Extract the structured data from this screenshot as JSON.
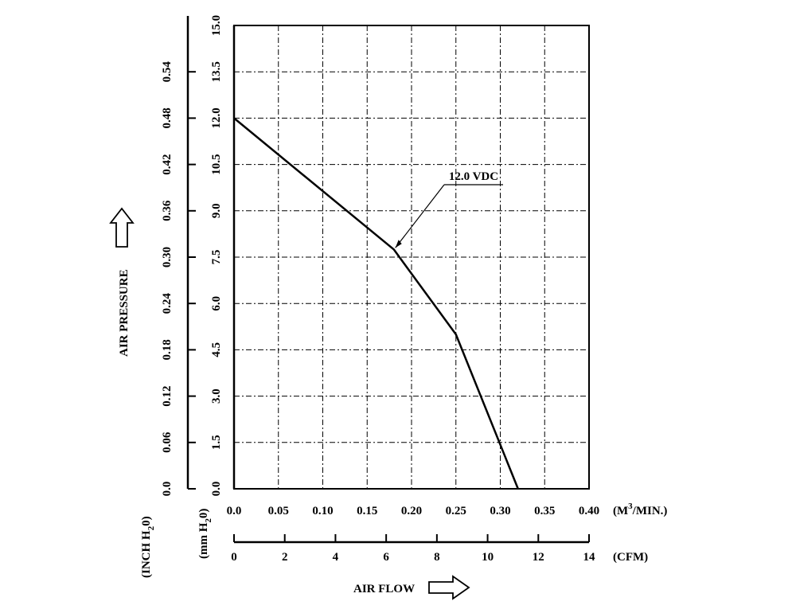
{
  "chart_data": {
    "type": "line",
    "x_unit_label": "(M",
    "x_unit_sup": "3",
    "x_unit_tail": "/MIN.)",
    "cfm_unit_label": "(CFM)",
    "y_mm_label": "(mm H",
    "y_mm_sub": "2",
    "y_mm_tail": "0)",
    "y_inch_label": "(INCH H",
    "y_inch_sub": "2",
    "y_inch_tail": "0)",
    "ylabel": "AIR PRESSURE",
    "xlabel": "AIR FLOW",
    "x_ticks": [
      "0.0",
      "0.05",
      "0.10",
      "0.15",
      "0.20",
      "0.25",
      "0.30",
      "0.35",
      "0.40"
    ],
    "cfm_ticks": [
      "0",
      "2",
      "4",
      "6",
      "8",
      "10",
      "12",
      "14"
    ],
    "mm_ticks": [
      "0.0",
      "1.5",
      "3.0",
      "4.5",
      "6.0",
      "7.5",
      "9.0",
      "10.5",
      "12.0",
      "13.5",
      "15.0"
    ],
    "inch_ticks": [
      "0.0",
      "0.06",
      "0.12",
      "0.18",
      "0.24",
      "0.30",
      "0.36",
      "0.42",
      "0.48",
      "0.54"
    ],
    "xlim": [
      0,
      0.4
    ],
    "ylim": [
      0,
      15
    ],
    "cfm_lim": [
      0,
      14
    ],
    "grid": true,
    "series": [
      {
        "name": "12.0 VDC",
        "x": [
          0.0,
          0.18,
          0.25,
          0.32
        ],
        "y": [
          12.0,
          7.75,
          5.0,
          0.0
        ]
      }
    ],
    "annotation": {
      "text": "12.0 VDC",
      "x": 0.18,
      "y": 7.75
    }
  }
}
